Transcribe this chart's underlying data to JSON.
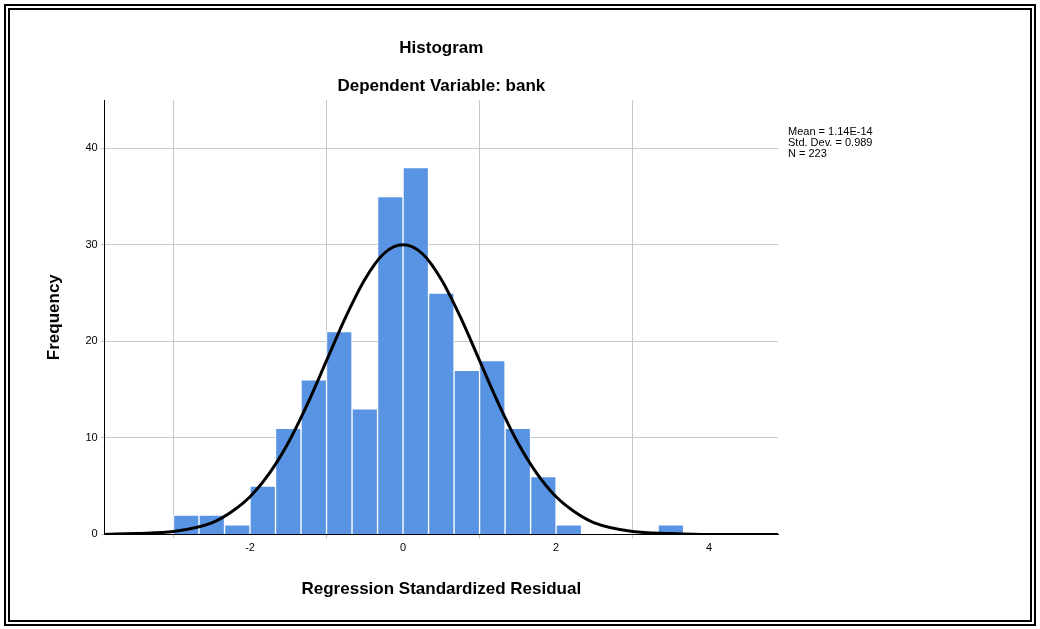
{
  "chart_data": {
    "type": "histogram",
    "title": "Histogram",
    "subtitle": "Dependent Variable: bank",
    "xlabel": "Regression Standardized Residual",
    "ylabel": "Frequency",
    "bins": [
      -3,
      -2.667,
      -2.333,
      -2,
      -1.667,
      -1.333,
      -1,
      -0.667,
      -0.333,
      0,
      0.333,
      0.667,
      1,
      1.333,
      1.667,
      2,
      2.333,
      2.667,
      3,
      3.333,
      3.667
    ],
    "values": [
      2,
      2,
      1,
      5,
      11,
      16,
      21,
      13,
      35,
      38,
      25,
      17,
      18,
      11,
      6,
      1,
      0,
      0,
      0,
      1
    ],
    "color": "#5894e3",
    "series": [
      {
        "type": "line",
        "color": "#000000",
        "x": [
          -3.9,
          -3.5,
          -3,
          -2.5,
          -2.25,
          -2,
          -1.75,
          -1.5,
          -1.25,
          -1,
          -0.75,
          -0.5,
          -0.25,
          0,
          0.25,
          0.5,
          0.75,
          1,
          1.25,
          1.5,
          1.75,
          2,
          2.25,
          2.5,
          3,
          3.5,
          4,
          4.5,
          4.9
        ],
        "values": [
          0,
          0.1,
          0.3,
          1.2,
          2.3,
          3.9,
          6.3,
          9.5,
          13.5,
          18,
          22.5,
          26.4,
          29.1,
          30,
          29.1,
          26.4,
          22.5,
          18,
          13.5,
          9.5,
          6.3,
          3.9,
          2.3,
          1.2,
          0.3,
          0.1,
          0,
          0,
          0
        ]
      }
    ],
    "xlim": [
      -3.9,
      4.9
    ],
    "ylim": [
      0,
      45
    ],
    "xticks": [
      -2,
      0,
      2,
      4
    ],
    "yticks": [
      0,
      10,
      20,
      30,
      40
    ],
    "grid": true,
    "legend": false,
    "marker": "none",
    "annotations": [
      "Mean = 1.14E-14",
      "Std. Dev. = 0.989",
      "N = 223"
    ]
  }
}
